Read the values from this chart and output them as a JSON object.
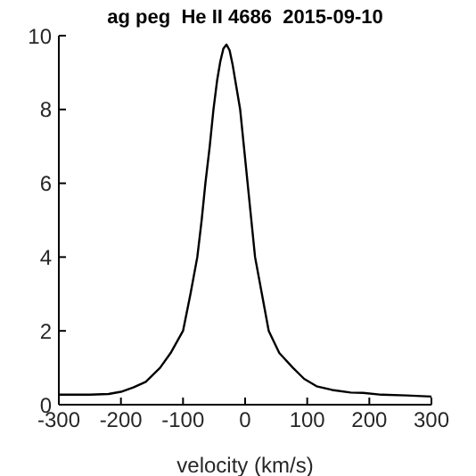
{
  "chart_data": {
    "type": "line",
    "title": "ag peg  He II 4686  2015-09-10",
    "xlabel": "velocity (km/s)",
    "x": [
      -300,
      -250,
      -220,
      -200,
      -180,
      -160,
      -137,
      -120,
      -110,
      -100,
      -88,
      -77,
      -70,
      -64,
      -57,
      -51,
      -45,
      -40,
      -35,
      -30,
      -25,
      -20,
      -14,
      -8,
      -2,
      4,
      10,
      16,
      27,
      38,
      55,
      77,
      95,
      115,
      140,
      170,
      190,
      220,
      260,
      300
    ],
    "series": [
      {
        "color": "#000000",
        "values": [
          0.27,
          0.27,
          0.29,
          0.35,
          0.47,
          0.62,
          1.0,
          1.4,
          1.7,
          2.0,
          3.0,
          4.0,
          5.0,
          6.0,
          7.0,
          8.0,
          8.8,
          9.3,
          9.65,
          9.76,
          9.6,
          9.2,
          8.6,
          8.0,
          7.0,
          6.0,
          5.0,
          4.0,
          3.0,
          2.0,
          1.4,
          1.0,
          0.7,
          0.5,
          0.4,
          0.33,
          0.32,
          0.27,
          0.25,
          0.22
        ]
      }
    ],
    "xlim": [
      -300,
      300
    ],
    "xticks": [
      -300,
      -200,
      -100,
      0,
      100,
      200,
      300
    ],
    "ylim": [
      0,
      10
    ],
    "yticks": [
      0,
      2,
      4,
      6,
      8,
      10
    ],
    "grid": false,
    "legend": false,
    "marker": "none",
    "line_style": "solid"
  }
}
